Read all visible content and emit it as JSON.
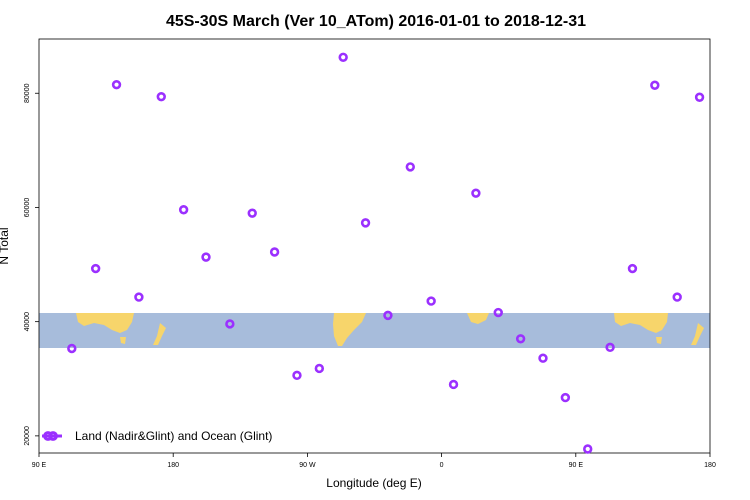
{
  "chart_data": {
    "type": "scatter",
    "title": "45S-30S March (Ver 10_ATom)   2016-01-01 to 2018-12-31",
    "xlabel": "Longitude (deg E)",
    "ylabel": "N Total",
    "x_tick_labels": [
      "90 E",
      "180",
      "90 W",
      "0",
      "90 E",
      "180"
    ],
    "y_tick_labels": [
      "20000",
      "40000",
      "60000",
      "80000"
    ],
    "grid": false,
    "legend_placement": "bottom-left",
    "series": [
      {
        "name": "Land (Nadir&Glint) and Ocean (Glint)",
        "color": "#9b30ff",
        "points": [
          {
            "x": 112,
            "y": 35300
          },
          {
            "x": 128,
            "y": 49300
          },
          {
            "x": 142,
            "y": 81500
          },
          {
            "x": 157,
            "y": 44300
          },
          {
            "x": 172,
            "y": 79400
          },
          {
            "x": 187,
            "y": 59600
          },
          {
            "x": 202,
            "y": 51300
          },
          {
            "x": 218,
            "y": 39600
          },
          {
            "x": 233,
            "y": 59000
          },
          {
            "x": 248,
            "y": 52200
          },
          {
            "x": 263,
            "y": 30600
          },
          {
            "x": 278,
            "y": 31800
          },
          {
            "x": 294,
            "y": 86300
          },
          {
            "x": 309,
            "y": 57300
          },
          {
            "x": 324,
            "y": 41100
          },
          {
            "x": 339,
            "y": 67100
          },
          {
            "x": 353,
            "y": 43600
          },
          {
            "x": 368,
            "y": 29000
          },
          {
            "x": 383,
            "y": 62500
          },
          {
            "x": 398,
            "y": 41600
          },
          {
            "x": 413,
            "y": 37000
          },
          {
            "x": 428,
            "y": 33600
          },
          {
            "x": 443,
            "y": 26700
          },
          {
            "x": 458,
            "y": 17700
          },
          {
            "x": 473,
            "y": 35500
          },
          {
            "x": 488,
            "y": 49300
          },
          {
            "x": 503,
            "y": 81400
          },
          {
            "x": 518,
            "y": 44300
          },
          {
            "x": 533,
            "y": 79300
          }
        ]
      }
    ],
    "xlim": [
      90,
      540
    ],
    "ylim": [
      17000,
      89500
    ],
    "x_ticks": [
      90,
      180,
      270,
      360,
      450,
      540
    ],
    "y_ticks": [
      20000,
      40000,
      60000,
      80000
    ],
    "background_band": {
      "ocean_color": "#a7bcdb",
      "land_color": "#f7d56b"
    }
  }
}
